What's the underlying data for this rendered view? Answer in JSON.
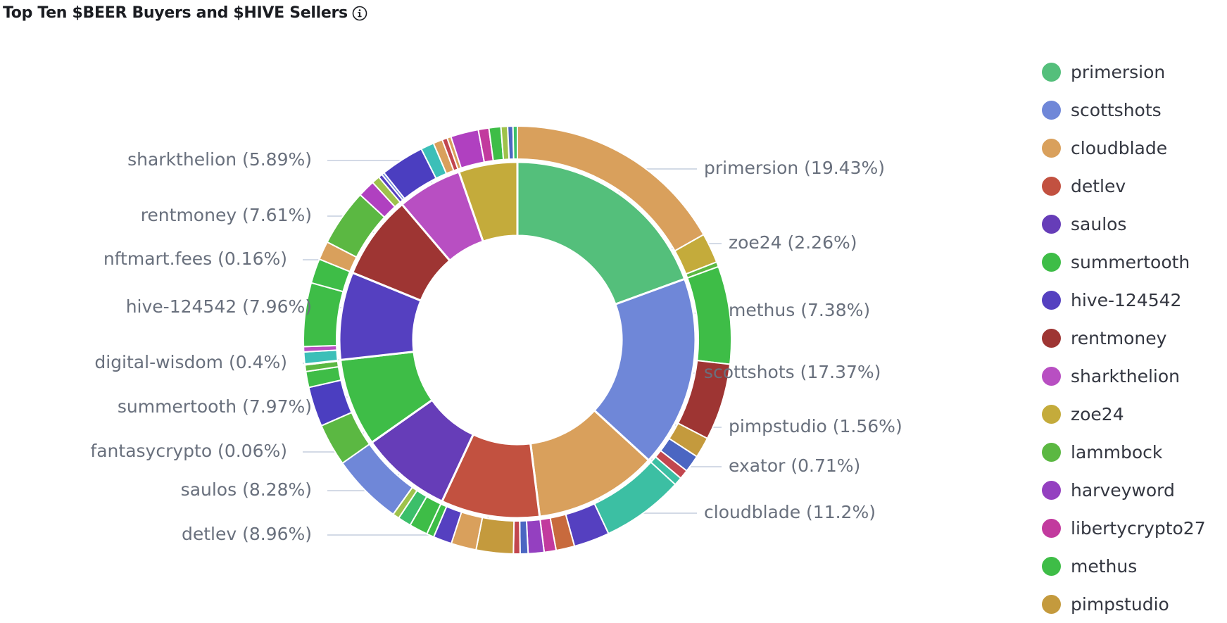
{
  "panel": {
    "title": "Top Ten $BEER Buyers and $HIVE Sellers",
    "info_icon": "info-icon"
  },
  "chart_data": {
    "type": "pie",
    "title": "Top Ten $BEER Buyers and $HIVE Sellers",
    "inner_ring": {
      "slices": [
        {
          "name": "primersion",
          "pct": 19.43,
          "color": "#54bf7b",
          "label": "primersion (19.43%)"
        },
        {
          "name": "scottshots",
          "pct": 17.37,
          "color": "#6f87d8",
          "label": "scottshots (17.37%)"
        },
        {
          "name": "cloudblade",
          "pct": 11.2,
          "color": "#d9a05c",
          "label": "cloudblade (11.2%)"
        },
        {
          "name": "detlev",
          "pct": 8.96,
          "color": "#c25140",
          "label": "detlev (8.96%)"
        },
        {
          "name": "saulos",
          "pct": 8.28,
          "color": "#663db8",
          "label": "saulos (8.28%)"
        },
        {
          "name": "summertooth",
          "pct": 7.97,
          "color": "#3ebd47",
          "label": "summertooth (7.97%)"
        },
        {
          "name": "hive-124542",
          "pct": 7.96,
          "color": "#5540c0",
          "label": "hive-124542 (7.96%)"
        },
        {
          "name": "rentmoney",
          "pct": 7.61,
          "color": "#9e3533",
          "label": "rentmoney (7.61%)"
        },
        {
          "name": "sharkthelion",
          "pct": 5.89,
          "color": "#b84fc2",
          "label": "sharkthelion (5.89%)"
        },
        {
          "name": "zoe24",
          "pct": 5.33,
          "color": "#c4ab3b",
          "label": ""
        }
      ],
      "callouts": [
        {
          "name": "zoe24",
          "label": "zoe24 (2.26%)"
        },
        {
          "name": "methus",
          "label": "methus (7.38%)"
        },
        {
          "name": "pimpstudio",
          "label": "pimpstudio (1.56%)"
        },
        {
          "name": "exator",
          "label": "exator (0.71%)"
        },
        {
          "name": "nftmart.fees",
          "label": "nftmart.fees (0.16%)"
        },
        {
          "name": "digital-wisdom",
          "label": "digital-wisdom (0.4%)"
        },
        {
          "name": "fantasycrypto",
          "label": "fantasycrypto (0.06%)"
        }
      ]
    },
    "outer_ring": {
      "segments": [
        {
          "parent": "primersion",
          "pct": 16.8,
          "color": "#d9a05c"
        },
        {
          "parent": "primersion",
          "pct": 2.26,
          "color": "#c4ab3b"
        },
        {
          "parent": "primersion",
          "pct": 0.37,
          "color": "#5bb842"
        },
        {
          "parent": "scottshots",
          "pct": 7.38,
          "color": "#3ebd47"
        },
        {
          "parent": "scottshots",
          "pct": 5.8,
          "color": "#9e3533"
        },
        {
          "parent": "scottshots",
          "pct": 1.56,
          "color": "#c49a3d"
        },
        {
          "parent": "scottshots",
          "pct": 1.3,
          "color": "#4b66c2"
        },
        {
          "parent": "scottshots",
          "pct": 0.71,
          "color": "#c2464e"
        },
        {
          "parent": "scottshots",
          "pct": 0.62,
          "color": "#3cbfa3"
        },
        {
          "parent": "cloudblade",
          "pct": 6.2,
          "color": "#3cbfa3"
        },
        {
          "parent": "cloudblade",
          "pct": 2.7,
          "color": "#5540c0"
        },
        {
          "parent": "cloudblade",
          "pct": 1.4,
          "color": "#c86a3d"
        },
        {
          "parent": "cloudblade",
          "pct": 0.9,
          "color": "#c23a9e"
        },
        {
          "parent": "detlev",
          "pct": 1.2,
          "color": "#9440c0"
        },
        {
          "parent": "detlev",
          "pct": 0.6,
          "color": "#4b66c2"
        },
        {
          "parent": "detlev",
          "pct": 0.5,
          "color": "#c2464e"
        },
        {
          "parent": "detlev",
          "pct": 2.8,
          "color": "#c49a3d"
        },
        {
          "parent": "detlev",
          "pct": 1.9,
          "color": "#d9a05c"
        },
        {
          "parent": "detlev",
          "pct": 1.4,
          "color": "#5540c0"
        },
        {
          "parent": "detlev",
          "pct": 0.56,
          "color": "#3ebd47"
        },
        {
          "parent": "saulos",
          "pct": 1.4,
          "color": "#3ebd47"
        },
        {
          "parent": "saulos",
          "pct": 1.0,
          "color": "#3cbf6a"
        },
        {
          "parent": "saulos",
          "pct": 0.5,
          "color": "#9ec24b"
        },
        {
          "parent": "saulos",
          "pct": 5.38,
          "color": "#6f87d8"
        },
        {
          "parent": "summertooth",
          "pct": 3.2,
          "color": "#5bb842"
        },
        {
          "parent": "summertooth",
          "pct": 3.0,
          "color": "#4b3ec0"
        },
        {
          "parent": "summertooth",
          "pct": 1.2,
          "color": "#3ebd47"
        },
        {
          "parent": "summertooth",
          "pct": 0.5,
          "color": "#5bb842"
        },
        {
          "parent": "summertooth",
          "pct": 0.07,
          "color": "#9440c0"
        },
        {
          "parent": "hive-124542",
          "pct": 0.9,
          "color": "#3cbfb8"
        },
        {
          "parent": "hive-124542",
          "pct": 0.4,
          "color": "#b84fc2"
        },
        {
          "parent": "hive-124542",
          "pct": 4.8,
          "color": "#3ebd47"
        },
        {
          "parent": "hive-124542",
          "pct": 1.86,
          "color": "#3ebd47"
        },
        {
          "parent": "rentmoney",
          "pct": 1.4,
          "color": "#d9a05c"
        },
        {
          "parent": "rentmoney",
          "pct": 4.3,
          "color": "#5bb842"
        },
        {
          "parent": "rentmoney",
          "pct": 1.3,
          "color": "#b040c0"
        },
        {
          "parent": "rentmoney",
          "pct": 0.61,
          "color": "#9ec24b"
        },
        {
          "parent": "sharkthelion",
          "pct": 0.3,
          "color": "#5540c0"
        },
        {
          "parent": "sharkthelion",
          "pct": 0.2,
          "color": "#6f87d8"
        },
        {
          "parent": "sharkthelion",
          "pct": 3.3,
          "color": "#4b3ec0"
        },
        {
          "parent": "sharkthelion",
          "pct": 1.0,
          "color": "#3cbfb8"
        },
        {
          "parent": "sharkthelion",
          "pct": 0.7,
          "color": "#d9a05c"
        },
        {
          "parent": "sharkthelion",
          "pct": 0.39,
          "color": "#c2464e"
        },
        {
          "parent": "zoe24",
          "pct": 0.3,
          "color": "#d9a05c"
        },
        {
          "parent": "zoe24",
          "pct": 2.1,
          "color": "#b040c0"
        },
        {
          "parent": "zoe24",
          "pct": 0.8,
          "color": "#c23a9e"
        },
        {
          "parent": "zoe24",
          "pct": 0.9,
          "color": "#3ebd47"
        },
        {
          "parent": "zoe24",
          "pct": 0.5,
          "color": "#9ec24b"
        },
        {
          "parent": "zoe24",
          "pct": 0.4,
          "color": "#4b66c2"
        },
        {
          "parent": "zoe24",
          "pct": 0.33,
          "color": "#3cbf6a"
        }
      ]
    },
    "legend": [
      {
        "name": "primersion",
        "color": "#54bf7b"
      },
      {
        "name": "scottshots",
        "color": "#6f87d8"
      },
      {
        "name": "cloudblade",
        "color": "#d9a05c"
      },
      {
        "name": "detlev",
        "color": "#c25140"
      },
      {
        "name": "saulos",
        "color": "#663db8"
      },
      {
        "name": "summertooth",
        "color": "#3ebd47"
      },
      {
        "name": "hive-124542",
        "color": "#5540c0"
      },
      {
        "name": "rentmoney",
        "color": "#9e3533"
      },
      {
        "name": "sharkthelion",
        "color": "#b84fc2"
      },
      {
        "name": "zoe24",
        "color": "#c4ab3b"
      },
      {
        "name": "lammbock",
        "color": "#5bb842"
      },
      {
        "name": "harveyword",
        "color": "#9440c0"
      },
      {
        "name": "libertycrypto27",
        "color": "#c23a9e"
      },
      {
        "name": "methus",
        "color": "#3ebd47"
      },
      {
        "name": "pimpstudio",
        "color": "#c49a3d"
      }
    ]
  }
}
